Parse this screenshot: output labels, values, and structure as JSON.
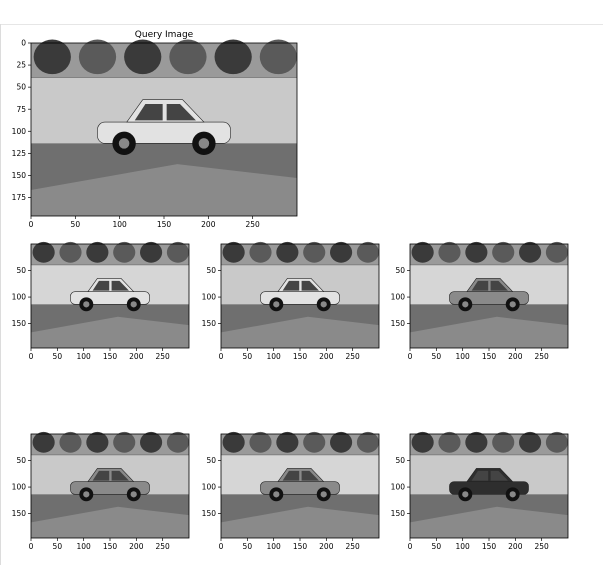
{
  "window": {
    "title": ""
  },
  "query": {
    "title": "Query Image",
    "x_ticks": [
      "0",
      "50",
      "100",
      "150",
      "200",
      "250"
    ],
    "y_ticks": [
      "0",
      "25",
      "50",
      "75",
      "100",
      "125",
      "150",
      "175"
    ],
    "car_tone": "silver sedan",
    "x_range": [
      0,
      300
    ],
    "y_range": [
      0,
      200
    ]
  },
  "results": [
    {
      "name": "result-1",
      "x_ticks": [
        "0",
        "50",
        "100",
        "150",
        "200",
        "250"
      ],
      "y_ticks": [
        "50",
        "100",
        "150"
      ],
      "car": "white sedan"
    },
    {
      "name": "result-2",
      "x_ticks": [
        "0",
        "50",
        "100",
        "150",
        "200",
        "250"
      ],
      "y_ticks": [
        "50",
        "100",
        "150"
      ],
      "car": "white sedan"
    },
    {
      "name": "result-3",
      "x_ticks": [
        "0",
        "50",
        "100",
        "150",
        "200",
        "250"
      ],
      "y_ticks": [
        "50",
        "100",
        "150"
      ],
      "car": "gray sedan"
    },
    {
      "name": "result-4",
      "x_ticks": [
        "0",
        "50",
        "100",
        "150",
        "200",
        "250"
      ],
      "y_ticks": [
        "50",
        "100",
        "150"
      ],
      "car": "gray sedan"
    },
    {
      "name": "result-5",
      "x_ticks": [
        "0",
        "50",
        "100",
        "150",
        "200",
        "250"
      ],
      "y_ticks": [
        "50",
        "100",
        "150"
      ],
      "car": "gray sedan"
    },
    {
      "name": "result-6",
      "x_ticks": [
        "0",
        "50",
        "100",
        "150",
        "200",
        "250"
      ],
      "y_ticks": [
        "50",
        "100",
        "150"
      ],
      "car": "dark sedan"
    }
  ],
  "colors": {
    "sky": "#d8d8d8",
    "wall": "#c9c9c9",
    "road": "#6f6f6f",
    "car_light": "#e2e2e2",
    "car_dark": "#2e2e2e",
    "tree": "#3a3a3a"
  }
}
